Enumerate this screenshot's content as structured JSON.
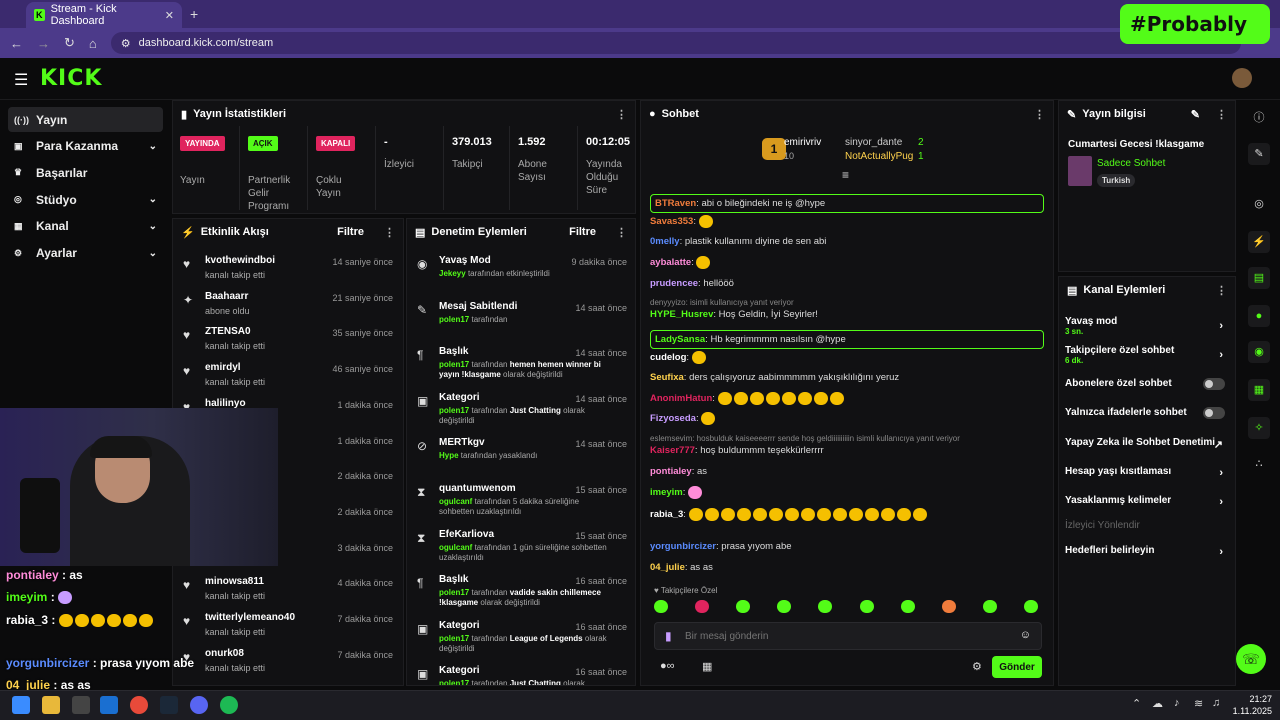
{
  "browser": {
    "tab_title": "Stream - Kick Dashboard",
    "url": "dashboard.kick.com/stream",
    "watermark": "#Probably"
  },
  "header": {
    "logo": "KICK"
  },
  "nav": [
    {
      "label": "Yayın",
      "icon": "broadcast-icon",
      "active": true
    },
    {
      "label": "Para Kazanma",
      "icon": "money-icon"
    },
    {
      "label": "Başarılar",
      "icon": "trophy-icon"
    },
    {
      "label": "Stüdyo",
      "icon": "studio-icon"
    },
    {
      "label": "Kanal",
      "icon": "channel-icon"
    },
    {
      "label": "Ayarlar",
      "icon": "settings-icon"
    }
  ],
  "stats": {
    "title": "Yayın İstatistikleri",
    "items": [
      {
        "badge": "YAYINDA",
        "label": "Yayın",
        "color": "#e0245e"
      },
      {
        "badge": "AÇIK",
        "label": "Partnerlik Gelir Programı",
        "color": "#53fc18"
      },
      {
        "badge": "KAPALI",
        "label": "Çoklu Yayın",
        "color": "#e0245e"
      },
      {
        "value": "-",
        "label": "İzleyici"
      },
      {
        "value": "379.013",
        "label": "Takipçi"
      },
      {
        "value": "1.592",
        "label": "Abone Sayısı"
      },
      {
        "value": "00:12:05",
        "label": "Yayında Olduğu Süre"
      }
    ]
  },
  "activity": {
    "title": "Etkinlik Akışı",
    "filter": "Filtre",
    "items": [
      {
        "name": "kvothewindboi",
        "action": "kanalı takip etti",
        "time": "14 saniye önce"
      },
      {
        "name": "Baahaarr",
        "action": "abone oldu",
        "time": "21 saniye önce"
      },
      {
        "name": "ZTENSA0",
        "action": "kanalı takip etti",
        "time": "35 saniye önce"
      },
      {
        "name": "emirdyl",
        "action": "kanalı takip etti",
        "time": "46 saniye önce"
      },
      {
        "name": "halilinyo",
        "action": "",
        "time": "1 dakika önce"
      },
      {
        "name": "",
        "action": "",
        "time": "1 dakika önce"
      },
      {
        "name": "",
        "action": "",
        "time": "2 dakika önce"
      },
      {
        "name": "",
        "action": "",
        "time": "2 dakika önce"
      },
      {
        "name": "",
        "action": "",
        "time": "3 dakika önce"
      },
      {
        "name": "minowsa811",
        "action": "kanalı takip etti",
        "time": "4 dakika önce"
      },
      {
        "name": "twitterlylemeano40",
        "action": "kanalı takip etti",
        "time": "7 dakika önce"
      },
      {
        "name": "onurk08",
        "action": "kanalı takip etti",
        "time": "7 dakika önce"
      }
    ]
  },
  "moderation": {
    "title": "Denetim Eylemleri",
    "filter": "Filtre",
    "items": [
      {
        "title": "Yavaş Mod",
        "user": "Jekeyy",
        "desc": "tarafından etkinleştirildi",
        "time": "9 dakika önce"
      },
      {
        "title": "Mesaj Sabitlendi",
        "user": "polen17",
        "desc": "tarafından",
        "time": "14 saat önce"
      },
      {
        "title": "Başlık",
        "user": "polen17",
        "desc": "tarafından",
        "bold": "hemen hemen winner bi yayın !klasgame",
        "desc2": "olarak değiştirildi",
        "time": "14 saat önce"
      },
      {
        "title": "Kategori",
        "user": "polen17",
        "desc": "tarafından",
        "bold": "Just Chatting",
        "desc2": "olarak değiştirildi",
        "time": "14 saat önce"
      },
      {
        "title": "MERTkgv",
        "user": "Hype",
        "desc": "tarafından yasaklandı",
        "time": "14 saat önce"
      },
      {
        "title": "quantumwenom",
        "user": "ogulcanf",
        "desc": "tarafından 5 dakika süreliğine sohbetten uzaklaştırıldı",
        "time": "15 saat önce"
      },
      {
        "title": "EfeKarliova",
        "user": "ogulcanf",
        "desc": "tarafından 1 gün süreliğine sohbetten uzaklaştırıldı",
        "time": "15 saat önce"
      },
      {
        "title": "Başlık",
        "user": "polen17",
        "desc": "tarafından",
        "bold": "vadide sakin chillemece !klasgame",
        "desc2": "olarak değiştirildi",
        "time": "16 saat önce"
      },
      {
        "title": "Kategori",
        "user": "polen17",
        "desc": "tarafından",
        "bold": "League of Legends",
        "desc2": "olarak değiştirildi",
        "time": "16 saat önce"
      },
      {
        "title": "Kategori",
        "user": "polen17",
        "desc": "tarafından",
        "bold": "Just Chatting",
        "desc2": "olarak değiştirildi",
        "time": "16 saat önce"
      }
    ]
  },
  "chat": {
    "title": "Sohbet",
    "leaders": [
      {
        "name": "emirivriv",
        "count": "10"
      },
      {
        "name": "sinyor_dante",
        "count": "2"
      },
      {
        "name": "NotActuallyPug",
        "count": "1"
      }
    ],
    "messages": [
      {
        "user": "BTRaven",
        "color": "#f07c3c",
        "text": "abi o bileğindeki ne iş @hype",
        "hl": true
      },
      {
        "user": "Savas353",
        "color": "#f07c3c",
        "text": ""
      },
      {
        "user": "0melly",
        "color": "#5b8cff",
        "text": "plastik kullanımı diyine de sen abi"
      },
      {
        "user": "aybalatte",
        "color": "#ff8cd9",
        "text": ""
      },
      {
        "user": "prudencee",
        "color": "#c79cff",
        "text": "hellööö"
      },
      {
        "reply": "denyyyizo: isimli kullanıcıya yanıt veriyor"
      },
      {
        "user": "HYPE_Husrev",
        "color": "#53fc18",
        "text": "Hoş Geldin, İyi Seyirler!"
      },
      {
        "user": "LadySansa",
        "color": "#53fc18",
        "text": "Hb kegrimmmm nasılsın @hype",
        "hl": true
      },
      {
        "user": "cudelog",
        "color": "#ffffff",
        "text": ""
      },
      {
        "user": "Seufixa",
        "color": "#ffd24d",
        "text": "ders çalışıyoruz aabimmmmm yakışıklılığını yeruz"
      },
      {
        "user": "AnonimHatun",
        "color": "#e0245e",
        "text": ""
      },
      {
        "user": "Fizyoseda",
        "color": "#c79cff",
        "text": ""
      },
      {
        "reply": "eslemsevim: hosbulduk kaiseeeerrr sende hoş geldiiiiiiiiiin isimli kullanıcıya yanıt veriyor"
      },
      {
        "user": "Kaiser777",
        "color": "#e0245e",
        "text": "hoş buldummm teşekkürlerrrr"
      },
      {
        "user": "pontialey",
        "color": "#ff8cd9",
        "text": "as"
      },
      {
        "user": "imeyim",
        "color": "#53fc18",
        "text": ""
      },
      {
        "user": "rabia_3",
        "color": "#ffffff",
        "text": ""
      },
      {
        "user": "yorgunbircizer",
        "color": "#5b8cff",
        "text": "prasa yıyom abe"
      },
      {
        "user": "04_julie",
        "color": "#ffd24d",
        "text": "as as"
      }
    ],
    "followers_only": "Takipçilere Özel",
    "placeholder": "Bir mesaj gönderin",
    "send": "Gönder"
  },
  "info": {
    "title": "Yayın bilgisi",
    "stream_title": "Cumartesi Gecesi !klasgame",
    "category": "Sadece Sohbet",
    "tag": "Turkish"
  },
  "actions": {
    "title": "Kanal Eylemleri",
    "items": [
      {
        "label": "Yavaş mod",
        "sub": "3 sn.",
        "type": "chev"
      },
      {
        "label": "Takipçilere özel sohbet",
        "sub": "6 dk.",
        "type": "chev"
      },
      {
        "label": "Abonelere özel sohbet",
        "type": "toggle"
      },
      {
        "label": "Yalnızca ifadelerle sohbet",
        "type": "toggle"
      },
      {
        "label": "Yapay Zeka ile Sohbet Denetimi",
        "type": "ext"
      },
      {
        "label": "Hesap yaşı kısıtlaması",
        "type": "chev"
      },
      {
        "label": "Yasaklanmış kelimeler",
        "type": "chev"
      },
      {
        "label": "İzleyici Yönlendir",
        "type": "disabled"
      },
      {
        "label": "Hedefleri belirleyin",
        "type": "chev"
      }
    ]
  },
  "overlay_chat": [
    {
      "user": "pontialey",
      "text": "as",
      "color": "#ff8cd9"
    },
    {
      "user": "imeyim",
      "text": "",
      "color": "#53fc18"
    },
    {
      "user": "rabia_3",
      "text": "",
      "color": "#ffffff"
    },
    {
      "user": "yorgunbircizer",
      "text": "prasa yıyom abe",
      "color": "#5b8cff"
    },
    {
      "user": "04_julie",
      "text": "as as",
      "color": "#ffd24d"
    }
  ],
  "clock": {
    "time": "21:27",
    "date": "1.11.2025"
  }
}
